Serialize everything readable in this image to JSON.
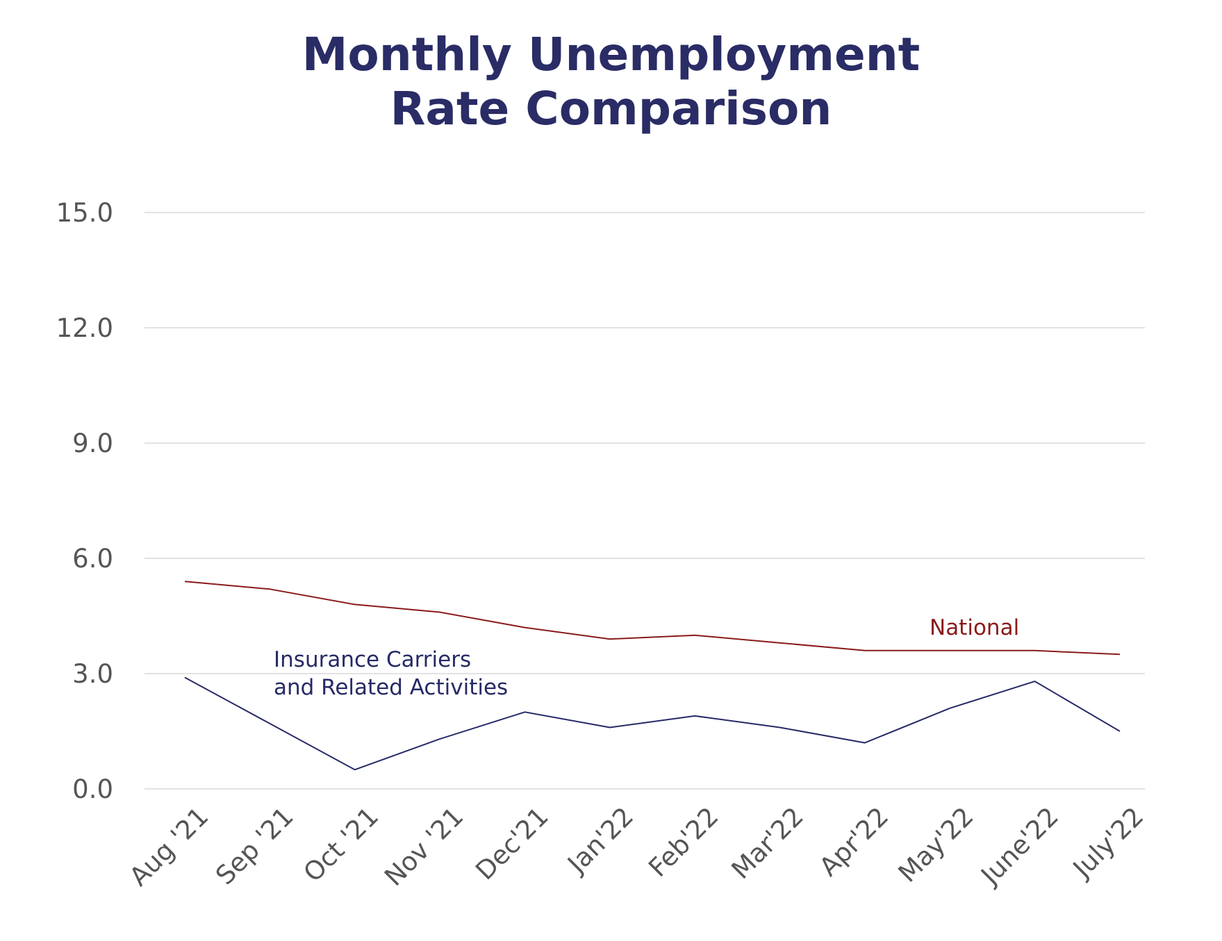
{
  "chart_data": {
    "type": "line",
    "title": [
      "Monthly Unemployment",
      "Rate Comparison"
    ],
    "xlabel": "",
    "ylabel": "",
    "ylim": [
      0,
      15
    ],
    "yticks": [
      "0.0",
      "3.0",
      "6.0",
      "9.0",
      "12.0",
      "15.0"
    ],
    "ytick_values": [
      0,
      3,
      6,
      9,
      12,
      15
    ],
    "categories": [
      "Aug '21",
      "Sep '21",
      "Oct '21",
      "Nov '21",
      "Dec'21",
      "Jan'22",
      "Feb'22",
      "Mar'22",
      "Apr'22",
      "May'22",
      "June'22",
      "July'22"
    ],
    "grid": true,
    "legend": "inline",
    "series": [
      {
        "name": "National",
        "color": "#8b1a1a",
        "values": [
          5.4,
          5.2,
          4.8,
          4.6,
          4.2,
          3.9,
          4.0,
          3.8,
          3.6,
          3.6,
          3.6,
          3.5
        ],
        "label_lines": [
          "National"
        ]
      },
      {
        "name": "Insurance Carriers and Related Activities",
        "color": "#262a66",
        "values": [
          2.9,
          1.7,
          0.5,
          1.3,
          2.0,
          1.6,
          1.9,
          1.6,
          1.2,
          2.1,
          2.8,
          1.5
        ],
        "label_lines": [
          "Insurance Carriers",
          "and Related Activities"
        ]
      }
    ]
  }
}
